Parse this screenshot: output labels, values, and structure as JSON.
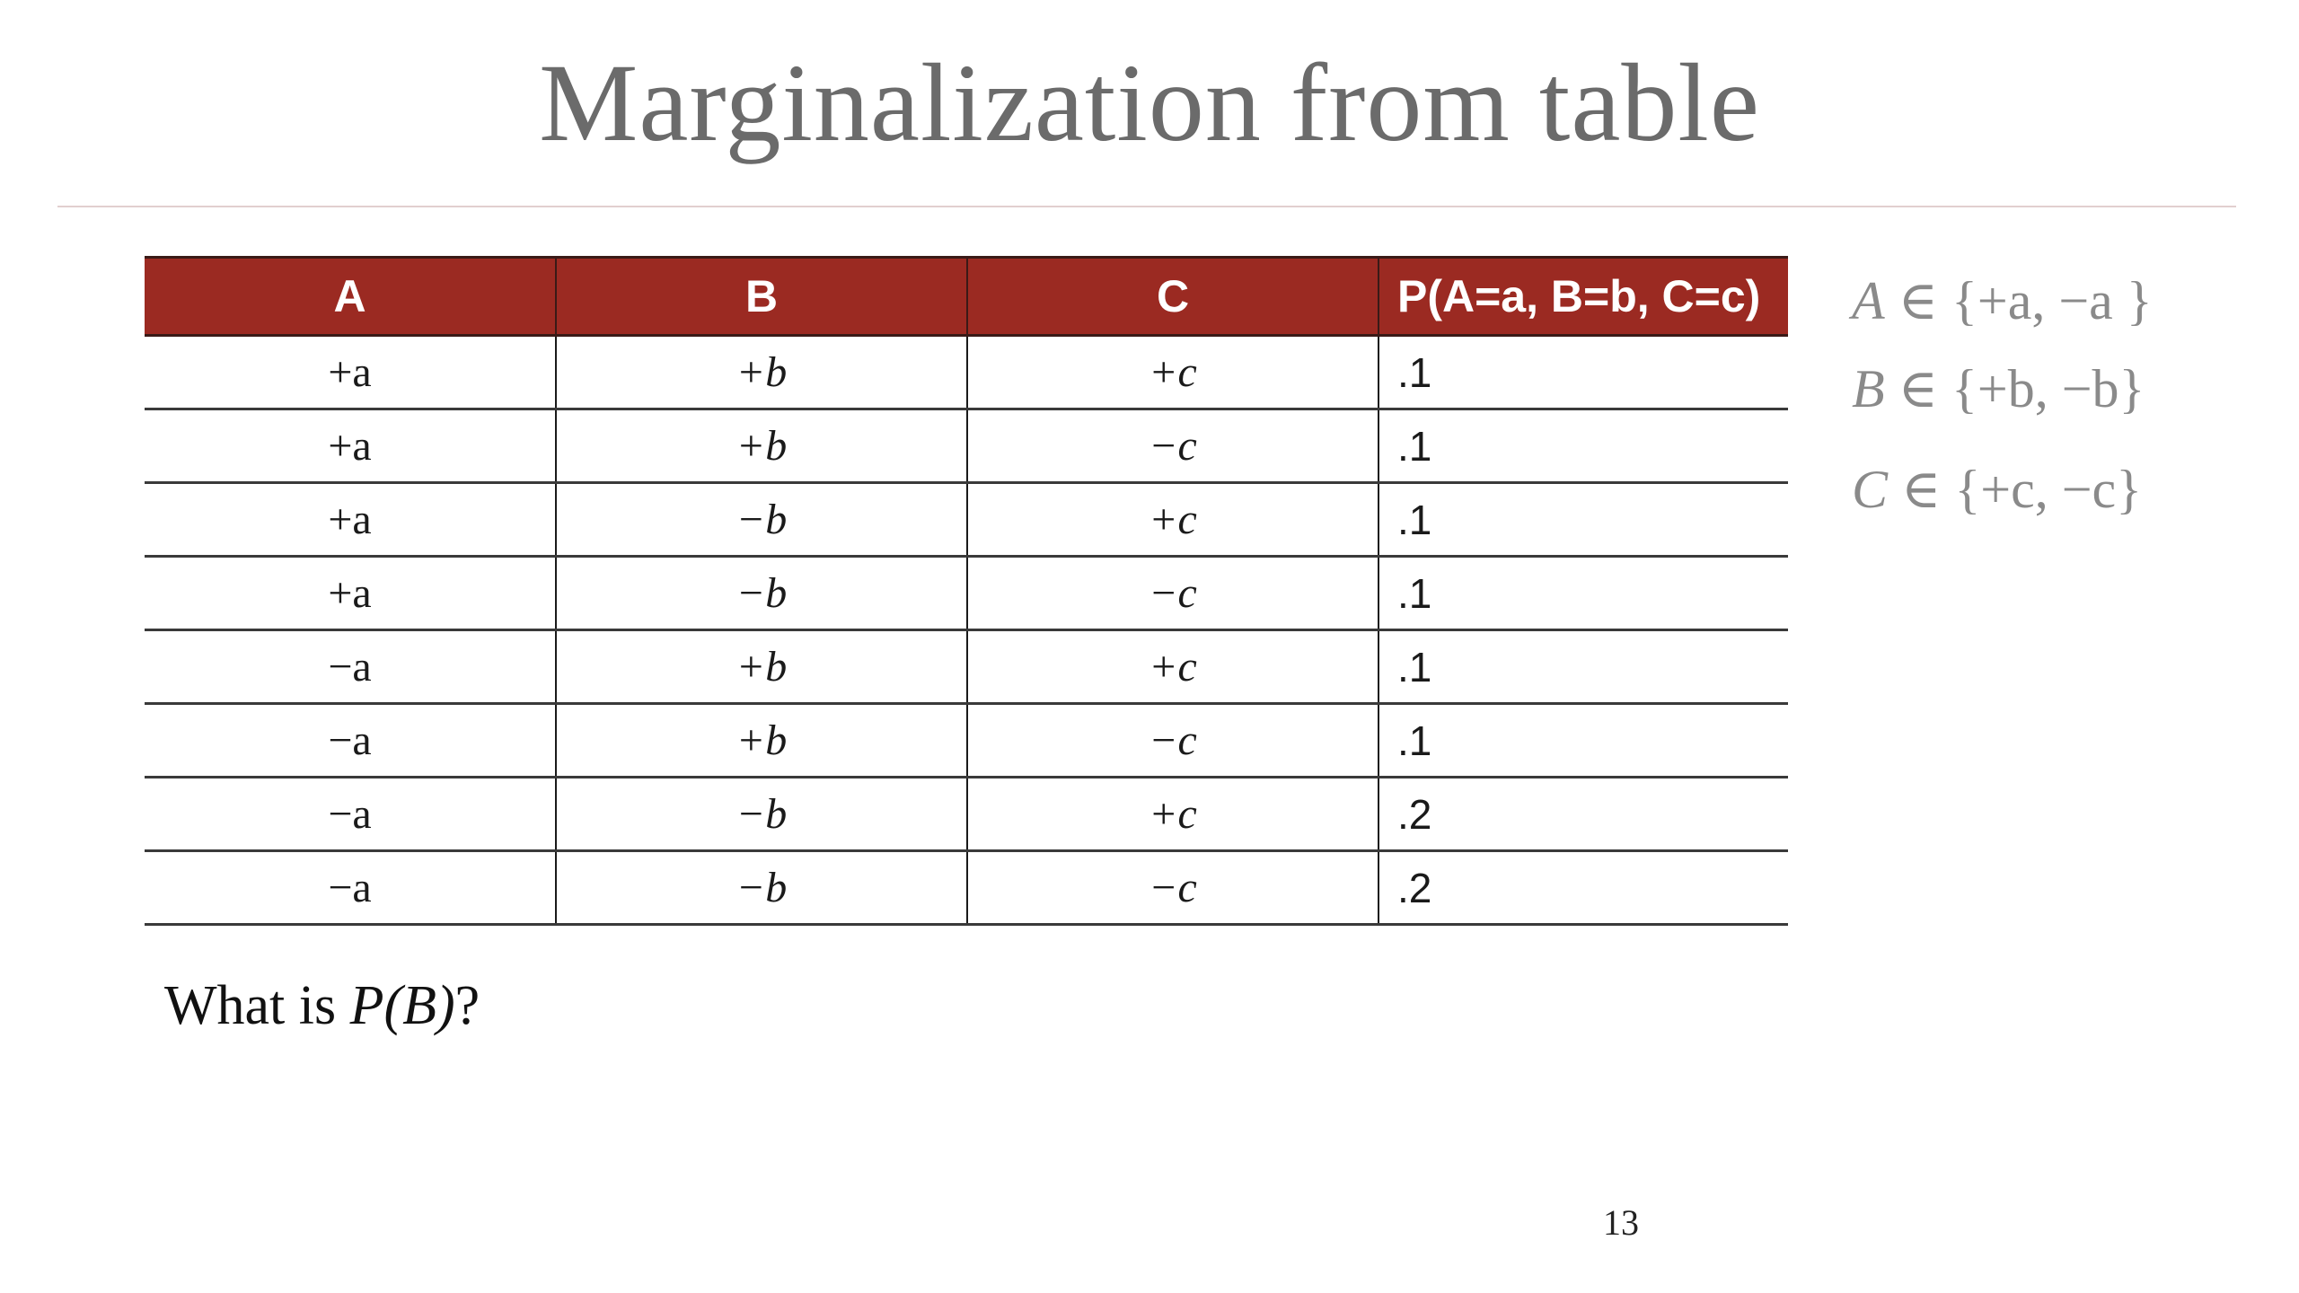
{
  "slide": {
    "title": "Marginalization from table",
    "page_number": "13"
  },
  "table": {
    "headers": [
      "A",
      "B",
      "C",
      "P(A=a, B=b, C=c)"
    ],
    "rows": [
      [
        "+a",
        "+b",
        "+c",
        ".1"
      ],
      [
        "+a",
        "+b",
        "−c",
        ".1"
      ],
      [
        "+a",
        "−b",
        "+c",
        ".1"
      ],
      [
        "+a",
        "−b",
        "−c",
        ".1"
      ],
      [
        "−a",
        "+b",
        "+c",
        ".1"
      ],
      [
        "−a",
        "+b",
        "−c",
        ".1"
      ],
      [
        "−a",
        "−b",
        "+c",
        ".2"
      ],
      [
        "−a",
        "−b",
        "−c",
        ".2"
      ]
    ]
  },
  "domains": [
    {
      "var": "A",
      "rel": " ∈ ",
      "set": "{+a, −a }"
    },
    {
      "var": "B",
      "rel": " ∈ ",
      "set": "{+b, −b}"
    },
    {
      "var": "C",
      "rel": " ∈ ",
      "set": "{+c, −c}"
    }
  ],
  "question": {
    "prefix": "What is ",
    "math": "P(B)",
    "suffix": "?"
  },
  "colors": {
    "header_bg": "#9b2a22",
    "header_text": "#ffffff",
    "title_text": "#6b6b6b",
    "domain_text": "#8a8a8a"
  }
}
